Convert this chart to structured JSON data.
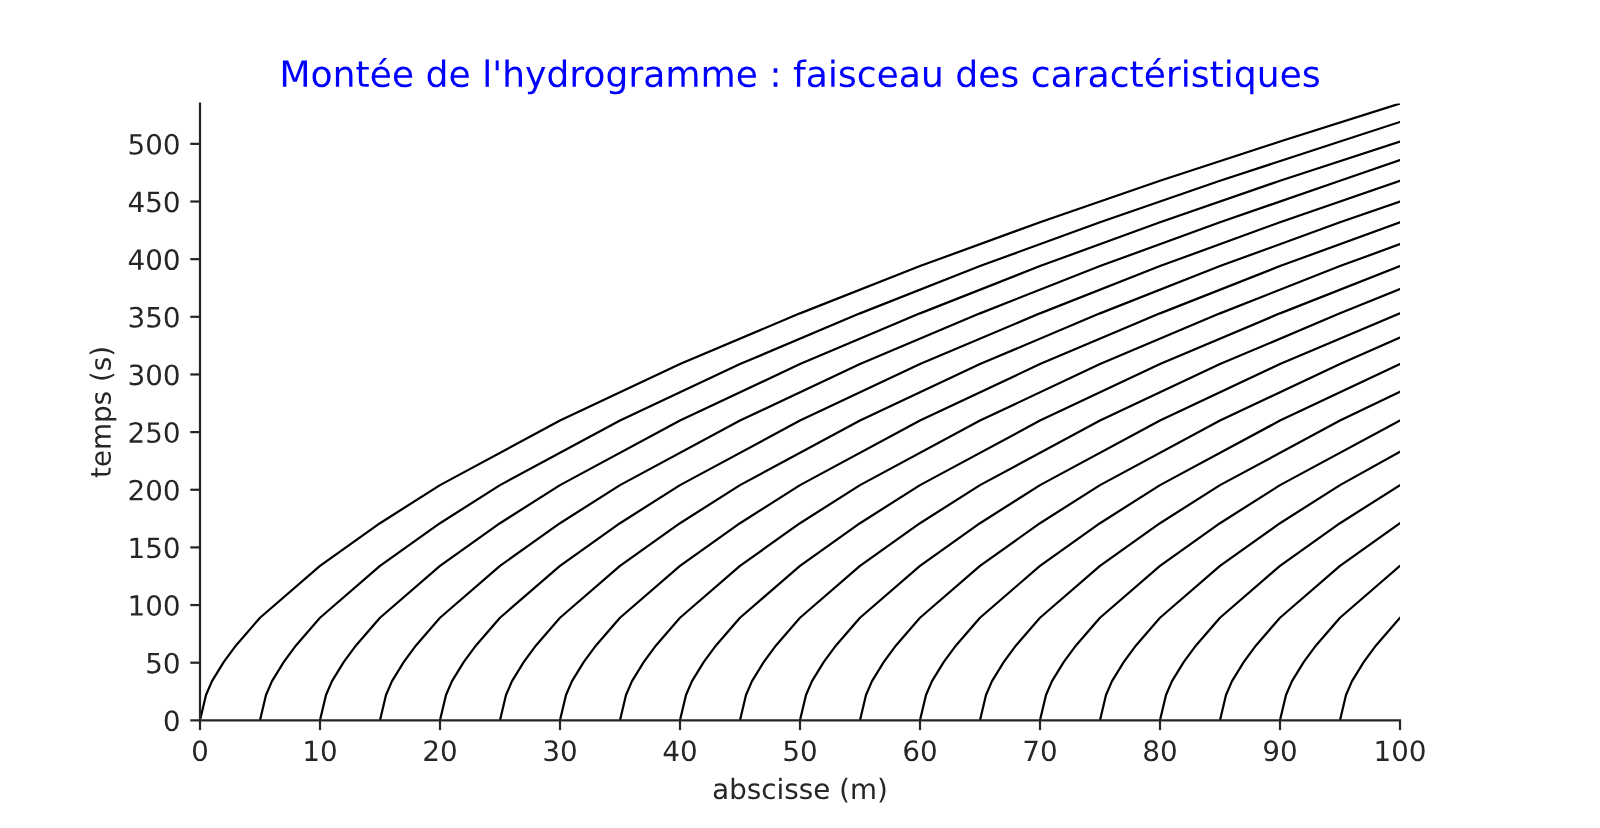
{
  "chart_data": {
    "type": "line",
    "title": "Montée de l'hydrogramme : faisceau des caractéristiques",
    "xlabel": "abscisse (m)",
    "ylabel": "temps (s)",
    "xlim": [
      0,
      100
    ],
    "xticks": [
      0,
      10,
      20,
      30,
      40,
      50,
      60,
      70,
      80,
      90,
      100
    ],
    "ylim": [
      0,
      535
    ],
    "yticks": [
      0,
      50,
      100,
      150,
      200,
      250,
      300,
      350,
      400,
      450,
      500
    ],
    "grid": false,
    "marker": "none",
    "line_style": "solid",
    "series": [
      {
        "color": "#000000",
        "x": [
          0,
          0.5,
          1,
          2,
          3,
          5,
          10,
          15,
          20,
          30,
          40,
          50,
          60,
          70,
          80,
          90,
          100
        ],
        "values": [
          0,
          22,
          34,
          51,
          65,
          89,
          134,
          171,
          204,
          260,
          309,
          353,
          394,
          432,
          468,
          502,
          535
        ]
      },
      {
        "color": "#000000",
        "x": [
          5,
          5.5,
          6,
          7,
          8,
          10,
          15,
          20,
          25,
          35,
          45,
          55,
          65,
          75,
          85,
          95,
          100
        ],
        "values": [
          0,
          22,
          34,
          51,
          65,
          89,
          134,
          171,
          204,
          260,
          309,
          353,
          394,
          432,
          468,
          502,
          519
        ]
      },
      {
        "color": "#000000",
        "x": [
          10,
          10.5,
          11,
          12,
          13,
          15,
          20,
          25,
          30,
          40,
          50,
          60,
          70,
          80,
          90,
          100
        ],
        "values": [
          0,
          22,
          34,
          51,
          65,
          89,
          134,
          171,
          204,
          260,
          309,
          353,
          394,
          432,
          468,
          502
        ]
      },
      {
        "color": "#000000",
        "x": [
          15,
          15.5,
          16,
          17,
          18,
          20,
          25,
          30,
          35,
          45,
          55,
          65,
          75,
          85,
          95,
          100
        ],
        "values": [
          0,
          22,
          34,
          51,
          65,
          89,
          134,
          171,
          204,
          260,
          309,
          353,
          394,
          432,
          468,
          486
        ]
      },
      {
        "color": "#000000",
        "x": [
          20,
          20.5,
          21,
          22,
          23,
          25,
          30,
          35,
          40,
          50,
          60,
          70,
          80,
          90,
          100
        ],
        "values": [
          0,
          22,
          34,
          51,
          65,
          89,
          134,
          171,
          204,
          260,
          309,
          353,
          394,
          432,
          468
        ]
      },
      {
        "color": "#000000",
        "x": [
          25,
          25.5,
          26,
          27,
          28,
          30,
          35,
          40,
          45,
          55,
          65,
          75,
          85,
          95,
          100
        ],
        "values": [
          0,
          22,
          34,
          51,
          65,
          89,
          134,
          171,
          204,
          260,
          309,
          353,
          394,
          432,
          450
        ]
      },
      {
        "color": "#000000",
        "x": [
          30,
          30.5,
          31,
          32,
          33,
          35,
          40,
          45,
          50,
          60,
          70,
          80,
          90,
          100
        ],
        "values": [
          0,
          22,
          34,
          51,
          65,
          89,
          134,
          171,
          204,
          260,
          309,
          353,
          394,
          432
        ]
      },
      {
        "color": "#000000",
        "x": [
          35,
          35.5,
          36,
          37,
          38,
          40,
          45,
          50,
          55,
          65,
          75,
          85,
          95,
          100
        ],
        "values": [
          0,
          22,
          34,
          51,
          65,
          89,
          134,
          171,
          204,
          260,
          309,
          353,
          394,
          413
        ]
      },
      {
        "color": "#000000",
        "x": [
          40,
          40.5,
          41,
          42,
          43,
          45,
          50,
          55,
          60,
          70,
          80,
          90,
          100
        ],
        "values": [
          0,
          22,
          34,
          51,
          65,
          89,
          134,
          171,
          204,
          260,
          309,
          353,
          394
        ]
      },
      {
        "color": "#000000",
        "x": [
          45,
          45.5,
          46,
          47,
          48,
          50,
          55,
          60,
          65,
          75,
          85,
          95,
          100
        ],
        "values": [
          0,
          22,
          34,
          51,
          65,
          89,
          134,
          171,
          204,
          260,
          309,
          353,
          374
        ]
      },
      {
        "color": "#000000",
        "x": [
          50,
          50.5,
          51,
          52,
          53,
          55,
          60,
          65,
          70,
          80,
          90,
          100
        ],
        "values": [
          0,
          22,
          34,
          51,
          65,
          89,
          134,
          171,
          204,
          260,
          309,
          353
        ]
      },
      {
        "color": "#000000",
        "x": [
          55,
          55.5,
          56,
          57,
          58,
          60,
          65,
          70,
          75,
          85,
          95,
          100
        ],
        "values": [
          0,
          22,
          34,
          51,
          65,
          89,
          134,
          171,
          204,
          260,
          309,
          332
        ]
      },
      {
        "color": "#000000",
        "x": [
          60,
          60.5,
          61,
          62,
          63,
          65,
          70,
          75,
          80,
          90,
          100
        ],
        "values": [
          0,
          22,
          34,
          51,
          65,
          89,
          134,
          171,
          204,
          260,
          309
        ]
      },
      {
        "color": "#000000",
        "x": [
          65,
          65.5,
          66,
          67,
          68,
          70,
          75,
          80,
          85,
          95,
          100
        ],
        "values": [
          0,
          22,
          34,
          51,
          65,
          89,
          134,
          171,
          204,
          260,
          285
        ]
      },
      {
        "color": "#000000",
        "x": [
          70,
          70.5,
          71,
          72,
          73,
          75,
          80,
          85,
          90,
          100
        ],
        "values": [
          0,
          22,
          34,
          51,
          65,
          89,
          134,
          171,
          204,
          260
        ]
      },
      {
        "color": "#000000",
        "x": [
          75,
          75.5,
          76,
          77,
          78,
          80,
          85,
          90,
          95,
          100
        ],
        "values": [
          0,
          22,
          34,
          51,
          65,
          89,
          134,
          171,
          204,
          233
        ]
      },
      {
        "color": "#000000",
        "x": [
          80,
          80.5,
          81,
          82,
          83,
          85,
          90,
          95,
          100
        ],
        "values": [
          0,
          22,
          34,
          51,
          65,
          89,
          134,
          171,
          204
        ]
      },
      {
        "color": "#000000",
        "x": [
          85,
          85.5,
          86,
          87,
          88,
          90,
          95,
          100
        ],
        "values": [
          0,
          22,
          34,
          51,
          65,
          89,
          134,
          171
        ]
      },
      {
        "color": "#000000",
        "x": [
          90,
          90.5,
          91,
          92,
          93,
          95,
          100
        ],
        "values": [
          0,
          22,
          34,
          51,
          65,
          89,
          134
        ]
      },
      {
        "color": "#000000",
        "x": [
          95,
          95.5,
          96,
          97,
          98,
          100
        ],
        "values": [
          0,
          22,
          34,
          51,
          65,
          89
        ]
      }
    ]
  }
}
